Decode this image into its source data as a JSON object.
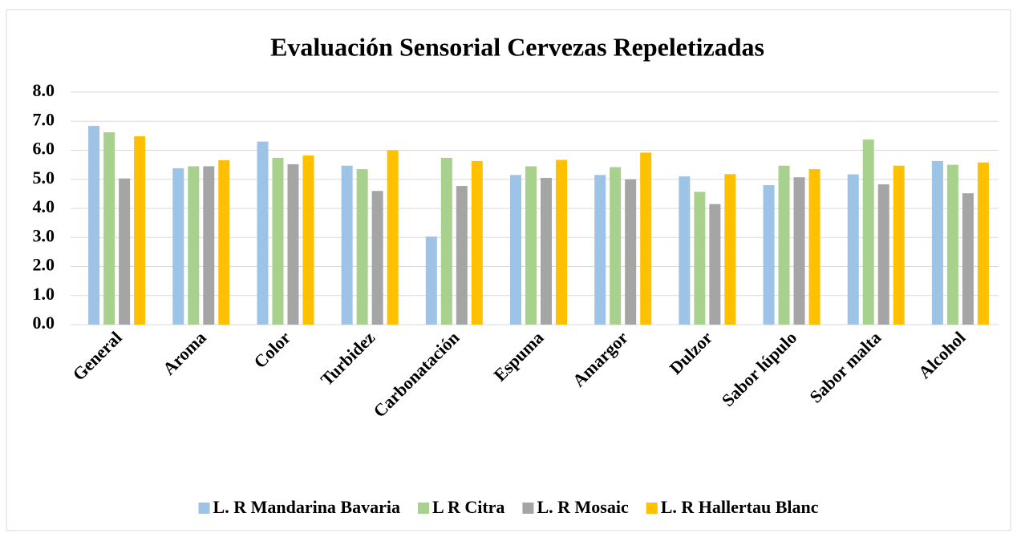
{
  "chart_data": {
    "type": "bar",
    "title": "Evaluación Sensorial Cervezas Repeletizadas",
    "categories": [
      "General",
      "Aroma",
      "Color",
      "Turbidez",
      "Carbonatación",
      "Espuma",
      "Amargor",
      "Dulzor",
      "Sabor lúpulo",
      "Sabor malta",
      "Alcohol"
    ],
    "series": [
      {
        "name": "L. R Mandarina Bavaria",
        "color": "#9dc3e6",
        "values": [
          6.84,
          5.38,
          6.3,
          5.47,
          3.03,
          5.15,
          5.15,
          5.1,
          4.8,
          5.17,
          5.63
        ]
      },
      {
        "name": "L R Citra",
        "color": "#a9d18e",
        "values": [
          6.62,
          5.45,
          5.74,
          5.35,
          5.74,
          5.45,
          5.42,
          4.57,
          5.47,
          6.37,
          5.5
        ]
      },
      {
        "name": "L. R Mosaic",
        "color": "#a5a5a5",
        "values": [
          5.03,
          5.45,
          5.52,
          4.6,
          4.77,
          5.05,
          5.0,
          4.15,
          5.07,
          4.83,
          4.52
        ]
      },
      {
        "name": "L. R Hallertau Blanc",
        "color": "#ffc000",
        "values": [
          6.48,
          5.66,
          5.82,
          6.0,
          5.63,
          5.67,
          5.92,
          5.18,
          5.35,
          5.47,
          5.58
        ]
      }
    ],
    "ylim": [
      0,
      8
    ],
    "yticks": [
      {
        "value": 0,
        "label": "0.0"
      },
      {
        "value": 1,
        "label": "1.0"
      },
      {
        "value": 2,
        "label": "2.0"
      },
      {
        "value": 3,
        "label": "3.0"
      },
      {
        "value": 4,
        "label": "4.0"
      },
      {
        "value": 5,
        "label": "5.0"
      },
      {
        "value": 6,
        "label": "6.0"
      },
      {
        "value": 7,
        "label": "7.0"
      },
      {
        "value": 8,
        "label": "8.0"
      }
    ],
    "grid": true,
    "legend": "bottom"
  }
}
